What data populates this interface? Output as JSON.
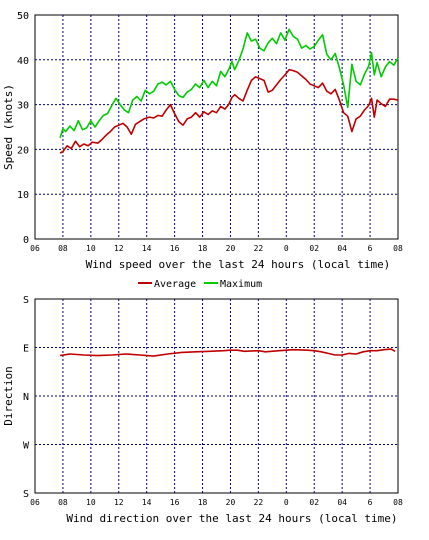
{
  "chart_data": [
    {
      "type": "line",
      "xlabel": "Wind speed over the last 24 hours (local time)",
      "ylabel": "Speed (knots)",
      "x_tick_labels": [
        "06",
        "08",
        "10",
        "12",
        "14",
        "16",
        "18",
        "20",
        "22",
        "0",
        "02",
        "04",
        "6",
        "08"
      ],
      "x_tick_hours": [
        6,
        8,
        10,
        12,
        14,
        16,
        18,
        20,
        22,
        24,
        26,
        28,
        30,
        32
      ],
      "xlim": [
        6,
        32
      ],
      "y_ticks": [
        0,
        10,
        20,
        30,
        40,
        50
      ],
      "y_tick_labels": [
        "0",
        "10",
        "20",
        "30",
        "40",
        "50"
      ],
      "ylim": [
        0,
        50
      ],
      "grid": true,
      "legend_placement": "bottom-center",
      "series": [
        {
          "name": "Average",
          "color": "#c00000",
          "points": [
            [
              7.8,
              19.2
            ],
            [
              8.0,
              19.5
            ],
            [
              8.3,
              20.8
            ],
            [
              8.6,
              20.2
            ],
            [
              8.9,
              21.8
            ],
            [
              9.2,
              20.6
            ],
            [
              9.5,
              21.2
            ],
            [
              9.8,
              20.8
            ],
            [
              10.1,
              21.6
            ],
            [
              10.5,
              21.4
            ],
            [
              10.8,
              22.2
            ],
            [
              11.1,
              23.2
            ],
            [
              11.4,
              24.0
            ],
            [
              11.7,
              25.0
            ],
            [
              12.0,
              25.4
            ],
            [
              12.3,
              25.8
            ],
            [
              12.6,
              25.0
            ],
            [
              12.9,
              23.4
            ],
            [
              13.2,
              25.6
            ],
            [
              13.5,
              26.2
            ],
            [
              13.8,
              26.8
            ],
            [
              14.2,
              27.2
            ],
            [
              14.5,
              27.0
            ],
            [
              14.8,
              27.6
            ],
            [
              15.1,
              27.4
            ],
            [
              15.4,
              28.8
            ],
            [
              15.7,
              30.0
            ],
            [
              16.0,
              28.0
            ],
            [
              16.3,
              26.2
            ],
            [
              16.6,
              25.4
            ],
            [
              16.9,
              26.8
            ],
            [
              17.2,
              27.2
            ],
            [
              17.5,
              28.2
            ],
            [
              17.8,
              27.2
            ],
            [
              18.1,
              28.4
            ],
            [
              18.4,
              27.8
            ],
            [
              18.7,
              28.6
            ],
            [
              19.0,
              28.2
            ],
            [
              19.3,
              29.6
            ],
            [
              19.6,
              29.0
            ],
            [
              19.9,
              30.2
            ],
            [
              20.1,
              31.6
            ],
            [
              20.3,
              32.2
            ],
            [
              20.6,
              31.4
            ],
            [
              20.9,
              30.8
            ],
            [
              21.2,
              33.2
            ],
            [
              21.5,
              35.4
            ],
            [
              21.8,
              36.2
            ],
            [
              22.1,
              35.8
            ],
            [
              22.4,
              35.4
            ],
            [
              22.7,
              32.8
            ],
            [
              23.0,
              33.2
            ],
            [
              23.3,
              34.4
            ],
            [
              23.6,
              35.6
            ],
            [
              23.9,
              36.6
            ],
            [
              24.2,
              37.8
            ],
            [
              24.5,
              37.6
            ],
            [
              24.8,
              37.2
            ],
            [
              25.1,
              36.4
            ],
            [
              25.4,
              35.6
            ],
            [
              25.7,
              34.6
            ],
            [
              26.0,
              34.2
            ],
            [
              26.3,
              33.8
            ],
            [
              26.6,
              34.8
            ],
            [
              26.9,
              33.0
            ],
            [
              27.2,
              32.4
            ],
            [
              27.5,
              33.4
            ],
            [
              27.8,
              31.0
            ],
            [
              28.1,
              28.2
            ],
            [
              28.4,
              27.4
            ],
            [
              28.7,
              24.0
            ],
            [
              29.0,
              26.8
            ],
            [
              29.3,
              27.4
            ],
            [
              29.6,
              28.8
            ],
            [
              29.9,
              29.8
            ],
            [
              30.1,
              31.4
            ],
            [
              30.3,
              27.2
            ],
            [
              30.5,
              31.0
            ],
            [
              30.8,
              30.2
            ],
            [
              31.1,
              29.6
            ],
            [
              31.4,
              31.2
            ],
            [
              31.7,
              31.2
            ],
            [
              32.0,
              31.0
            ]
          ]
        },
        {
          "name": "Maximum",
          "color": "#00cc00",
          "points": [
            [
              7.8,
              22.6
            ],
            [
              8.0,
              24.6
            ],
            [
              8.2,
              24.0
            ],
            [
              8.5,
              25.2
            ],
            [
              8.8,
              24.2
            ],
            [
              9.1,
              26.4
            ],
            [
              9.4,
              24.4
            ],
            [
              9.7,
              24.8
            ],
            [
              10.0,
              26.4
            ],
            [
              10.3,
              25.0
            ],
            [
              10.6,
              26.4
            ],
            [
              10.9,
              27.6
            ],
            [
              11.2,
              28.0
            ],
            [
              11.5,
              29.8
            ],
            [
              11.8,
              31.4
            ],
            [
              12.1,
              30.0
            ],
            [
              12.4,
              28.8
            ],
            [
              12.7,
              28.2
            ],
            [
              13.0,
              31.0
            ],
            [
              13.3,
              31.8
            ],
            [
              13.6,
              30.8
            ],
            [
              13.9,
              33.2
            ],
            [
              14.2,
              32.4
            ],
            [
              14.5,
              33.0
            ],
            [
              14.8,
              34.6
            ],
            [
              15.1,
              35.0
            ],
            [
              15.4,
              34.4
            ],
            [
              15.7,
              35.2
            ],
            [
              16.0,
              33.4
            ],
            [
              16.3,
              32.0
            ],
            [
              16.6,
              31.6
            ],
            [
              16.9,
              32.8
            ],
            [
              17.2,
              33.4
            ],
            [
              17.5,
              34.6
            ],
            [
              17.8,
              33.8
            ],
            [
              18.1,
              35.4
            ],
            [
              18.4,
              33.8
            ],
            [
              18.7,
              35.2
            ],
            [
              19.0,
              34.2
            ],
            [
              19.3,
              37.4
            ],
            [
              19.6,
              36.2
            ],
            [
              19.9,
              38.0
            ],
            [
              20.1,
              39.6
            ],
            [
              20.3,
              37.8
            ],
            [
              20.6,
              39.8
            ],
            [
              20.9,
              42.4
            ],
            [
              21.2,
              46.0
            ],
            [
              21.5,
              44.2
            ],
            [
              21.8,
              44.6
            ],
            [
              22.1,
              42.6
            ],
            [
              22.4,
              42.0
            ],
            [
              22.7,
              43.8
            ],
            [
              23.0,
              44.8
            ],
            [
              23.3,
              43.6
            ],
            [
              23.6,
              46.0
            ],
            [
              23.9,
              44.4
            ],
            [
              24.2,
              46.8
            ],
            [
              24.5,
              45.2
            ],
            [
              24.8,
              44.6
            ],
            [
              25.1,
              42.6
            ],
            [
              25.4,
              43.2
            ],
            [
              25.7,
              42.4
            ],
            [
              26.0,
              43.0
            ],
            [
              26.3,
              44.4
            ],
            [
              26.6,
              45.6
            ],
            [
              26.9,
              41.2
            ],
            [
              27.2,
              40.0
            ],
            [
              27.5,
              41.4
            ],
            [
              27.8,
              38.2
            ],
            [
              28.1,
              34.4
            ],
            [
              28.4,
              29.4
            ],
            [
              28.7,
              39.0
            ],
            [
              29.0,
              35.2
            ],
            [
              29.3,
              34.4
            ],
            [
              29.6,
              36.8
            ],
            [
              29.9,
              38.6
            ],
            [
              30.1,
              41.6
            ],
            [
              30.3,
              36.6
            ],
            [
              30.5,
              39.4
            ],
            [
              30.8,
              36.2
            ],
            [
              31.1,
              38.4
            ],
            [
              31.4,
              39.6
            ],
            [
              31.7,
              38.8
            ],
            [
              32.0,
              40.4
            ]
          ]
        }
      ]
    },
    {
      "type": "line",
      "xlabel": "Wind direction over the last 24 hours (local time)",
      "ylabel": "Direction",
      "x_tick_labels": [
        "06",
        "08",
        "10",
        "12",
        "14",
        "16",
        "18",
        "20",
        "22",
        "0",
        "02",
        "04",
        "6",
        "08"
      ],
      "x_tick_hours": [
        6,
        8,
        10,
        12,
        14,
        16,
        18,
        20,
        22,
        24,
        26,
        28,
        30,
        32
      ],
      "xlim": [
        6,
        32
      ],
      "y_ticks": [
        0,
        90,
        180,
        270,
        360
      ],
      "y_tick_labels": [
        "S",
        "E",
        "N",
        "W",
        "S"
      ],
      "ylim": [
        360,
        0
      ],
      "grid": true,
      "series": [
        {
          "color": "#c00000",
          "points": [
            [
              7.8,
              105
            ],
            [
              8.5,
              102
            ],
            [
              9.5,
              104
            ],
            [
              10.5,
              105
            ],
            [
              11.5,
              104
            ],
            [
              12.5,
              102
            ],
            [
              13.5,
              104
            ],
            [
              14.5,
              106
            ],
            [
              15.5,
              102
            ],
            [
              16.5,
              99
            ],
            [
              17.5,
              98
            ],
            [
              18.5,
              97
            ],
            [
              19.5,
              96
            ],
            [
              20.0,
              95
            ],
            [
              20.5,
              95
            ],
            [
              21.0,
              97
            ],
            [
              22.0,
              96
            ],
            [
              22.5,
              98
            ],
            [
              23.5,
              96
            ],
            [
              24.0,
              95
            ],
            [
              24.5,
              94
            ],
            [
              25.5,
              95
            ],
            [
              26.0,
              96
            ],
            [
              26.5,
              98
            ],
            [
              27.0,
              101
            ],
            [
              27.5,
              104
            ],
            [
              28.0,
              104
            ],
            [
              28.5,
              101
            ],
            [
              29.0,
              102
            ],
            [
              29.5,
              98
            ],
            [
              30.0,
              96
            ],
            [
              30.5,
              96
            ],
            [
              31.0,
              94
            ],
            [
              31.5,
              93
            ],
            [
              31.8,
              97
            ]
          ]
        }
      ]
    }
  ]
}
